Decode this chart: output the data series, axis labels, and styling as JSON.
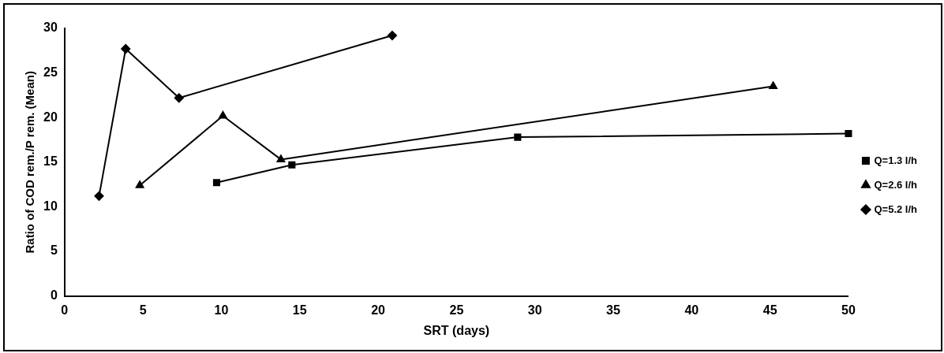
{
  "chart_data": {
    "type": "line",
    "xlabel": "SRT (days)",
    "ylabel": "Ratio of COD rem./P rem. (Mean)",
    "xlim": [
      0,
      50
    ],
    "xticks": [
      0,
      5,
      10,
      15,
      20,
      25,
      30,
      35,
      40,
      45,
      50
    ],
    "ylim": [
      0,
      30
    ],
    "yticks": [
      0,
      5,
      10,
      15,
      20,
      25,
      30
    ],
    "grid": false,
    "legend": "right",
    "series": [
      {
        "name": "Q=1.3 l/h",
        "color": "#000000",
        "marker": "square",
        "x": [
          9.7,
          14.5,
          28.9,
          50
        ],
        "values": [
          12.7,
          14.7,
          17.8,
          18.2
        ]
      },
      {
        "name": "Q=2.6 l/h",
        "color": "#000000",
        "marker": "triangle",
        "x": [
          4.8,
          10.1,
          13.8,
          45.2
        ],
        "values": [
          12.4,
          20.2,
          15.3,
          23.5
        ]
      },
      {
        "name": "Q=5.2 l/h",
        "color": "#000000",
        "marker": "diamond",
        "x": [
          2.2,
          3.9,
          7.3,
          20.9
        ],
        "values": [
          11.2,
          27.7,
          22.2,
          29.2
        ]
      }
    ]
  }
}
